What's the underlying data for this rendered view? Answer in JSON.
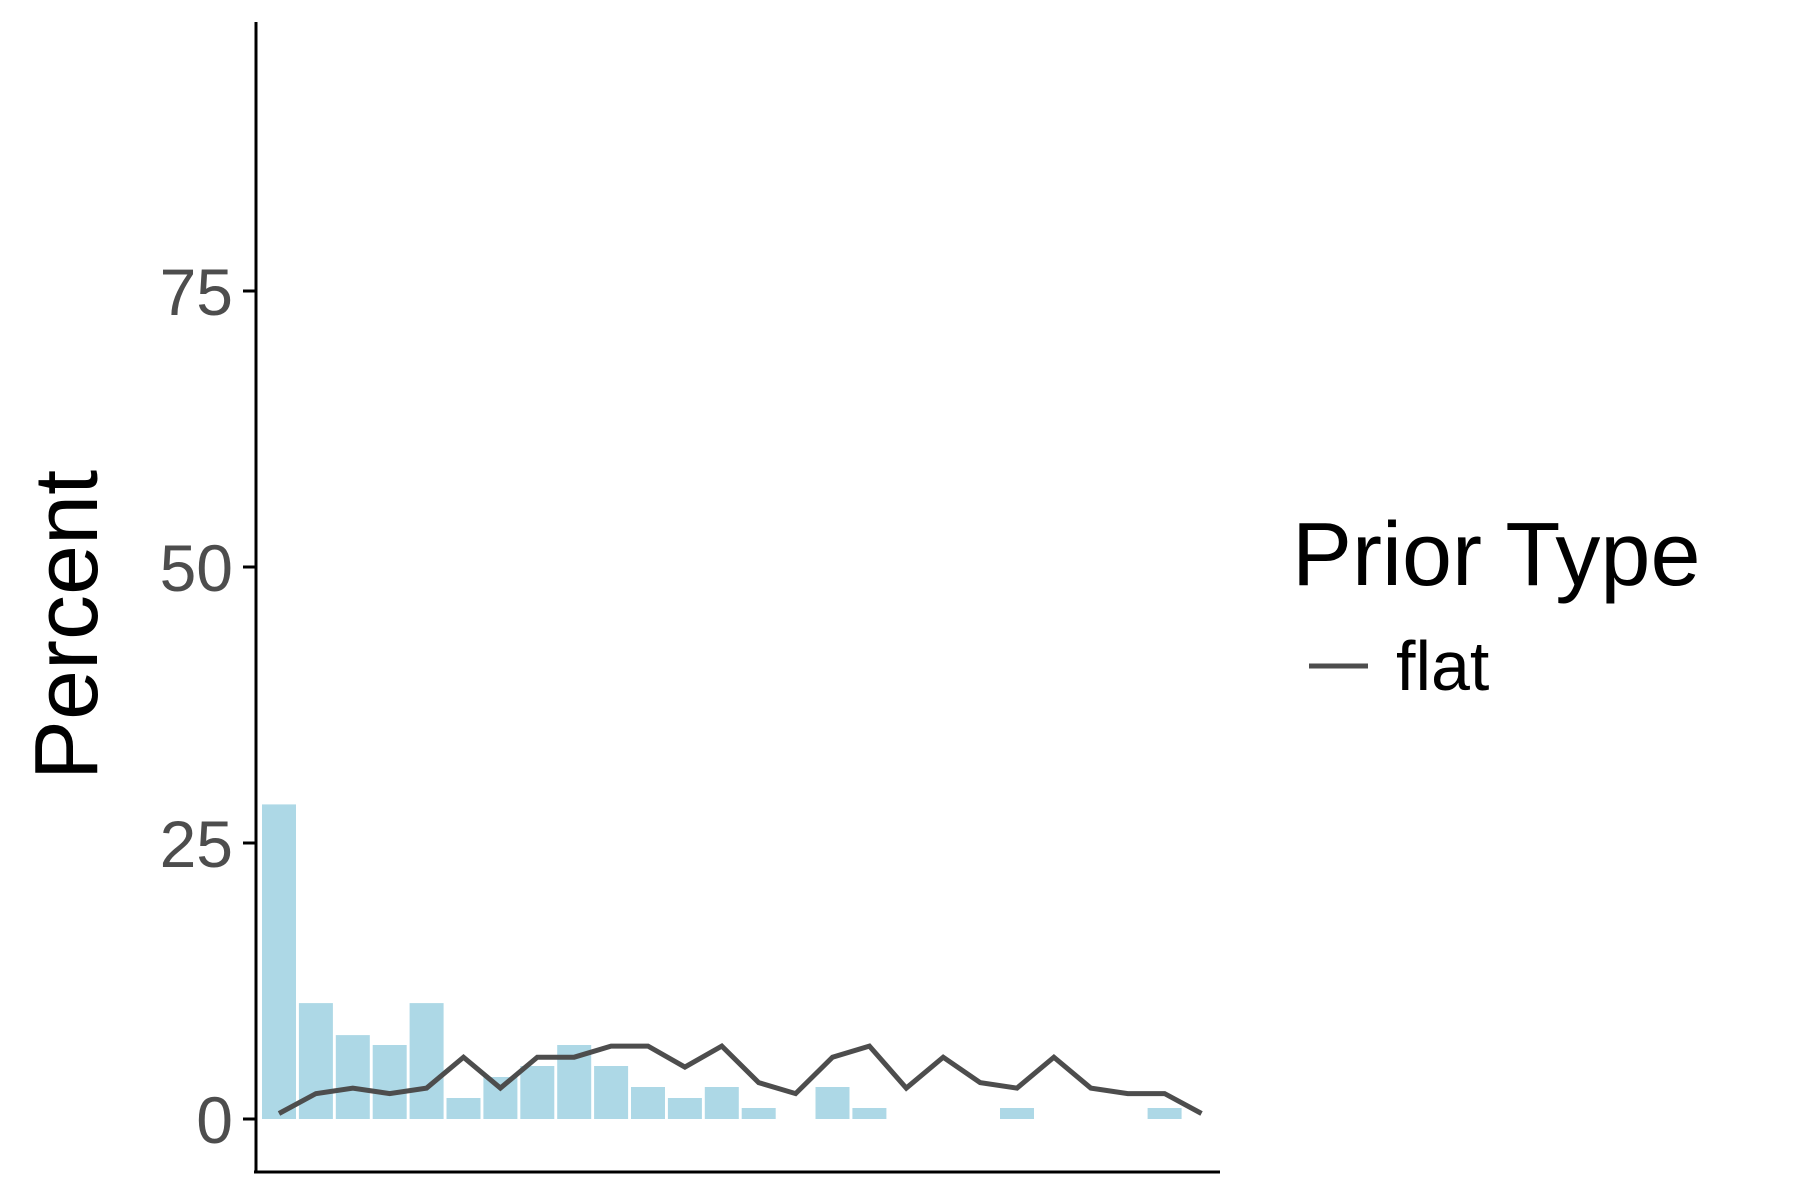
{
  "chart_data": {
    "type": "bar",
    "ylabel": "Percent",
    "xlabel": "",
    "ylim": [
      -4.5,
      100
    ],
    "y_ticks": [
      0,
      25,
      50,
      75
    ],
    "y_tick_labels": [
      "0",
      "25",
      "50",
      "75"
    ],
    "grid": false,
    "legend_position": "right",
    "legend": {
      "title": "Prior Type",
      "entries": [
        {
          "label": "flat",
          "color": "#4d4d4d"
        }
      ]
    },
    "bars": {
      "color": "#add8e6",
      "x": [
        1,
        2,
        3,
        4,
        5,
        6,
        7,
        8,
        9,
        10,
        11,
        12,
        13,
        14,
        15,
        16,
        17,
        18,
        19,
        20,
        21,
        22,
        23,
        24,
        25
      ],
      "values": [
        28.5,
        10.5,
        7.6,
        6.7,
        10.5,
        1.9,
        3.8,
        4.8,
        6.7,
        4.8,
        2.9,
        1.9,
        2.9,
        1.0,
        0,
        2.9,
        1.0,
        0,
        0,
        0,
        1.0,
        0,
        0,
        0,
        1.0
      ]
    },
    "series": [
      {
        "name": "flat",
        "color": "#4d4d4d",
        "x": [
          1,
          2,
          3,
          4,
          5,
          6,
          7,
          8,
          9,
          10,
          11,
          12,
          13,
          14,
          15,
          16,
          17,
          18,
          19,
          20,
          21,
          22,
          23,
          24,
          25,
          26
        ],
        "values": [
          0.5,
          2.3,
          2.8,
          2.3,
          2.8,
          5.6,
          2.8,
          5.6,
          5.6,
          6.6,
          6.6,
          4.7,
          6.6,
          3.3,
          2.3,
          5.6,
          6.6,
          2.8,
          5.6,
          3.3,
          2.8,
          5.6,
          2.8,
          2.3,
          2.3,
          0.5
        ]
      }
    ]
  },
  "colors": {
    "bar_fill": "#add8e6",
    "line": "#4d4d4d",
    "axis": "#000000",
    "tick_text": "#4d4d4d"
  }
}
